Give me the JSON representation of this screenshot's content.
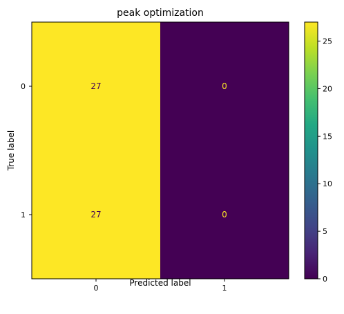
{
  "chart_data": {
    "type": "heatmap",
    "title": "peak optimization",
    "xlabel": "Predicted label",
    "ylabel": "True label",
    "x_categories": [
      "0",
      "1"
    ],
    "y_categories": [
      "0",
      "1"
    ],
    "matrix": [
      [
        27,
        0
      ],
      [
        27,
        0
      ]
    ],
    "cell_labels": [
      [
        "27",
        "0"
      ],
      [
        "27",
        "0"
      ]
    ],
    "colormap": "viridis",
    "colorbar": {
      "range": [
        0,
        27
      ],
      "ticks": [
        0,
        5,
        10,
        15,
        20,
        25
      ],
      "tick_labels": [
        "0",
        "5",
        "10",
        "15",
        "20",
        "25"
      ]
    },
    "colors": {
      "low": "#440154",
      "high": "#fde725",
      "text_on_low": "#fde725",
      "text_on_high": "#440154"
    }
  }
}
